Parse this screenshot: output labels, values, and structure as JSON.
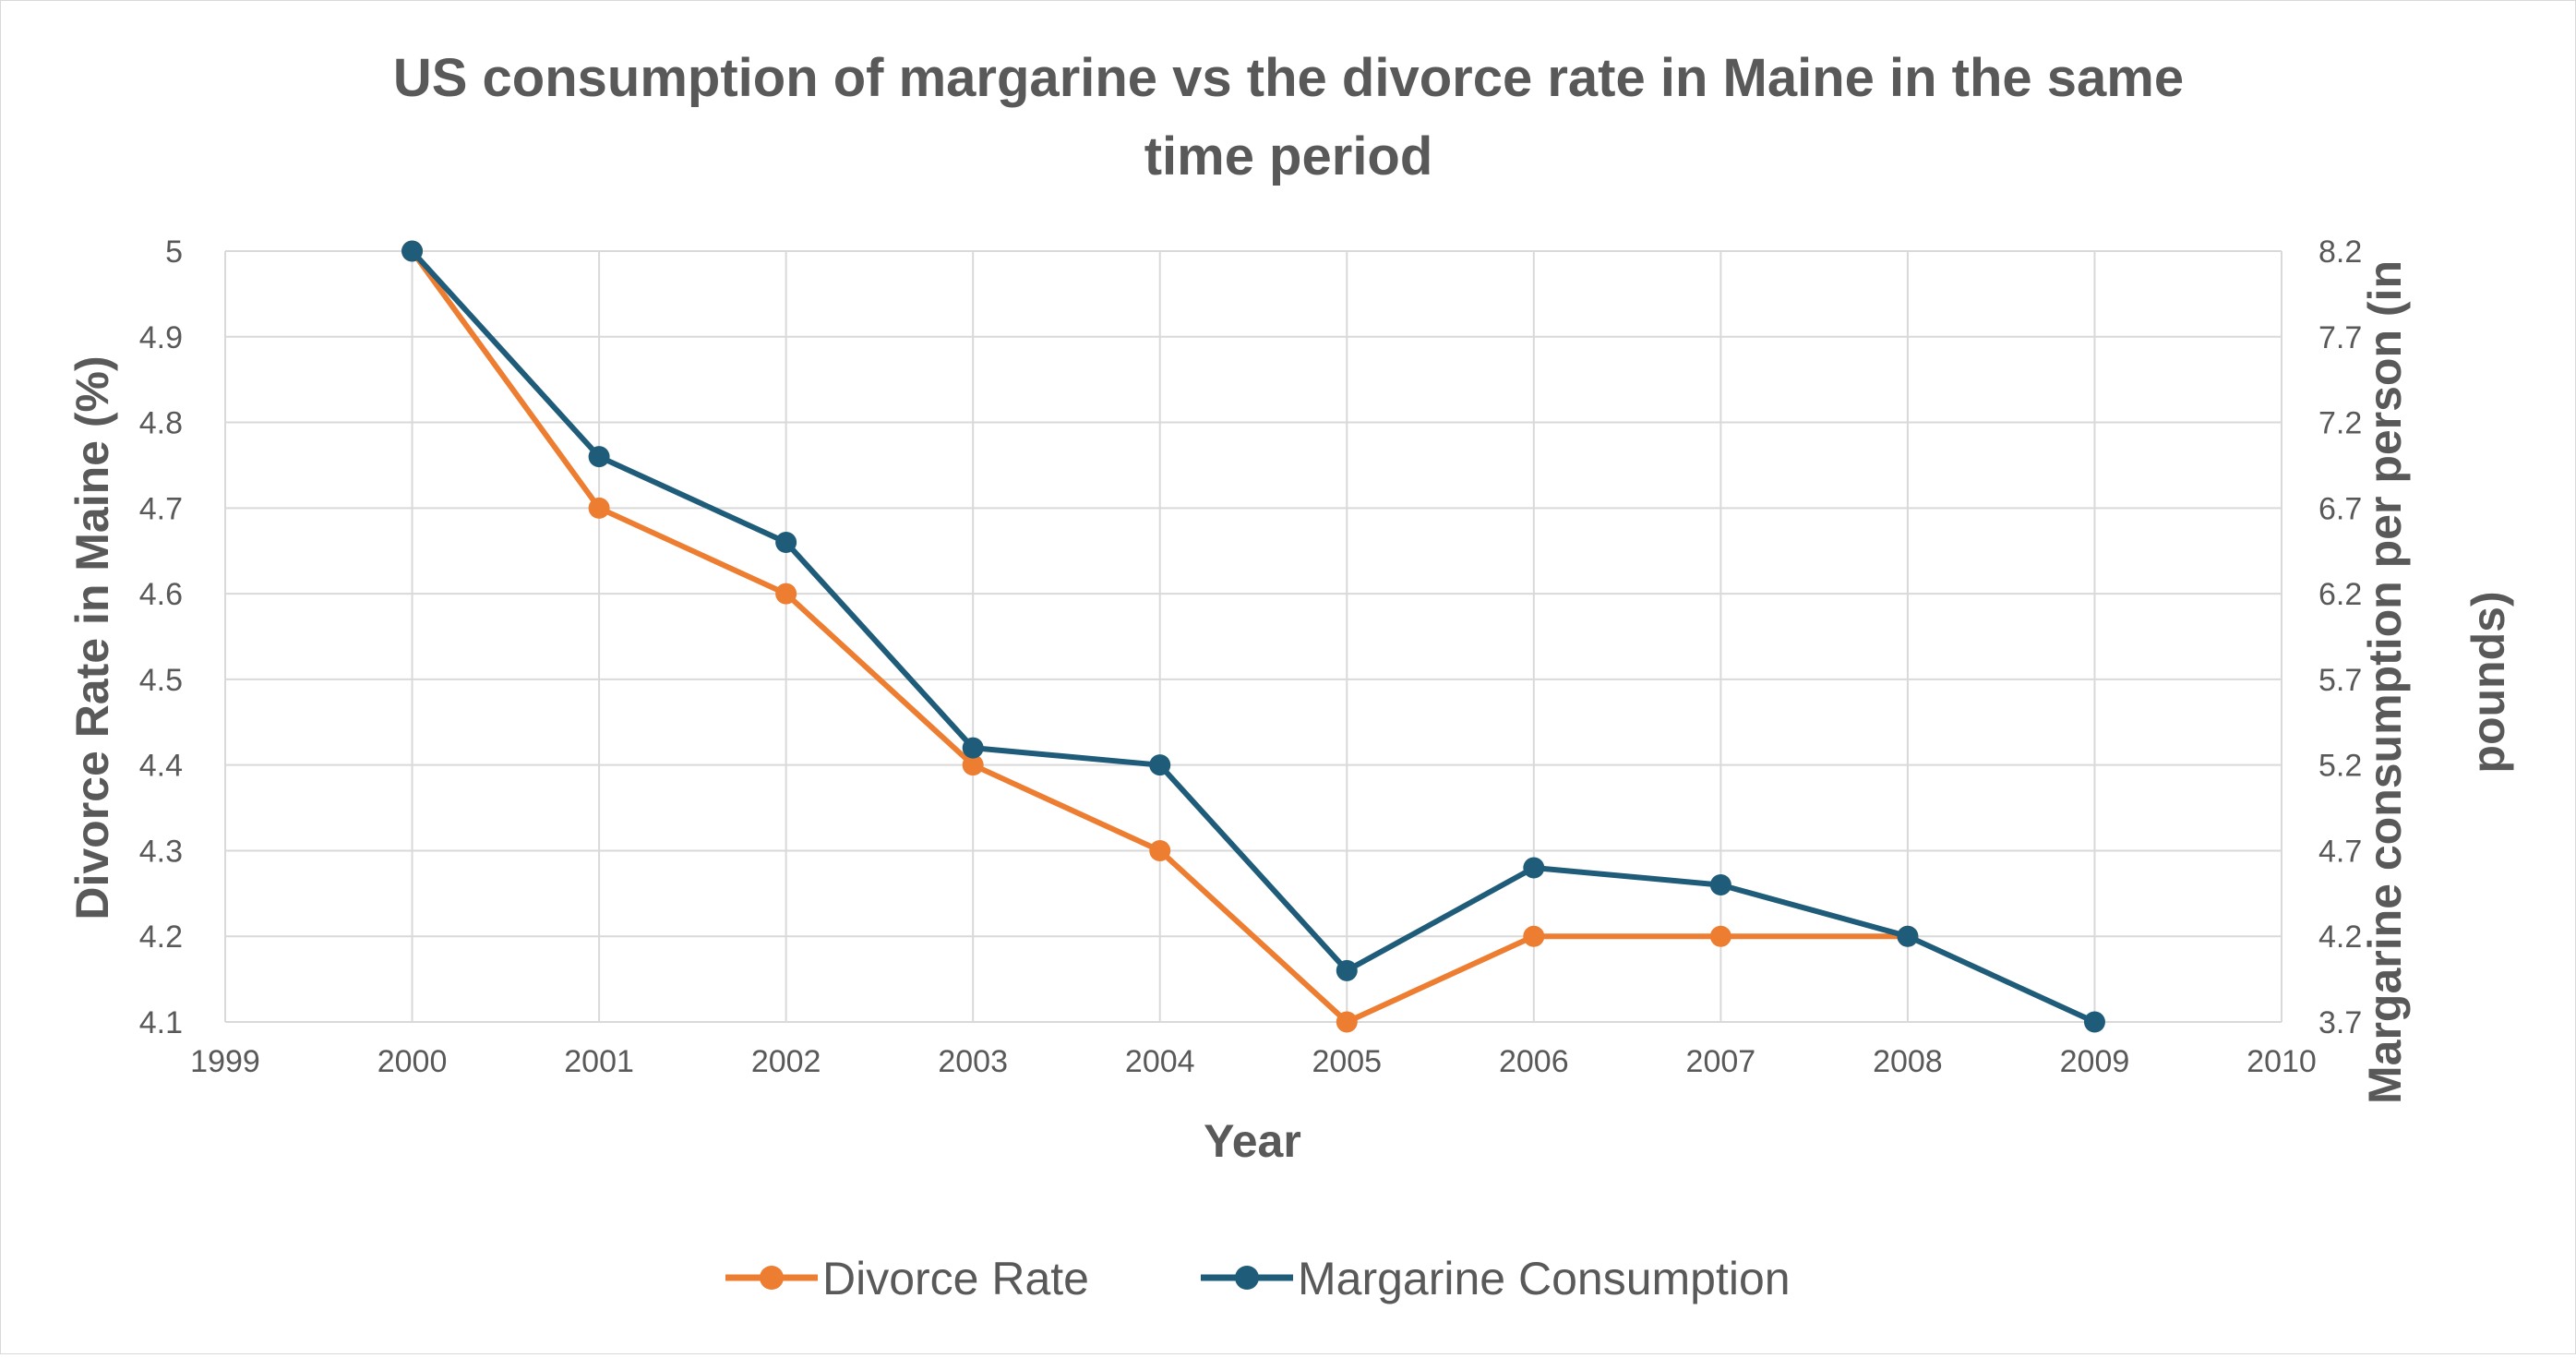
{
  "chart_data": {
    "type": "line",
    "title": "US consumption of margarine vs the divorce rate in Maine in the same time period",
    "title_lines": [
      "US consumption of margarine vs the divorce rate in Maine in the same",
      "time period"
    ],
    "xlabel": "Year",
    "ylabel": "Divorce Rate in Maine  (%)",
    "y2label": "Margarine consumption per person (in pounds)",
    "y2label_lines": [
      "Margarine consumption per person (in",
      "pounds)"
    ],
    "xlim": [
      1999,
      2010
    ],
    "x_ticks": [
      "1999",
      "2000",
      "2001",
      "2002",
      "2003",
      "2004",
      "2005",
      "2006",
      "2007",
      "2008",
      "2009",
      "2010"
    ],
    "ylim": [
      4.1,
      5
    ],
    "y_ticks": [
      "4.1",
      "4.2",
      "4.3",
      "4.4",
      "4.5",
      "4.6",
      "4.7",
      "4.8",
      "4.9",
      "5"
    ],
    "y2lim": [
      3.7,
      8.2
    ],
    "y2_ticks": [
      "3.7",
      "4.2",
      "4.7",
      "5.2",
      "5.7",
      "6.2",
      "6.7",
      "7.2",
      "7.7",
      "8.2"
    ],
    "grid": true,
    "legend_position": "bottom",
    "x": [
      2000,
      2001,
      2002,
      2003,
      2004,
      2005,
      2006,
      2007,
      2008,
      2009
    ],
    "series": [
      {
        "name": "Divorce Rate",
        "axis": "left",
        "color": "#ED7D31",
        "x": [
          2000,
          2001,
          2002,
          2003,
          2004,
          2005,
          2006,
          2007,
          2008
        ],
        "values": [
          5.0,
          4.7,
          4.6,
          4.4,
          4.3,
          4.1,
          4.2,
          4.2,
          4.2
        ]
      },
      {
        "name": "Margarine Consumption",
        "axis": "right",
        "color": "#1F5C7A",
        "x": [
          2000,
          2001,
          2002,
          2003,
          2004,
          2005,
          2006,
          2007,
          2008,
          2009
        ],
        "values": [
          8.2,
          7.0,
          6.5,
          5.3,
          5.2,
          4.0,
          4.6,
          4.5,
          4.2,
          3.7
        ]
      }
    ]
  }
}
